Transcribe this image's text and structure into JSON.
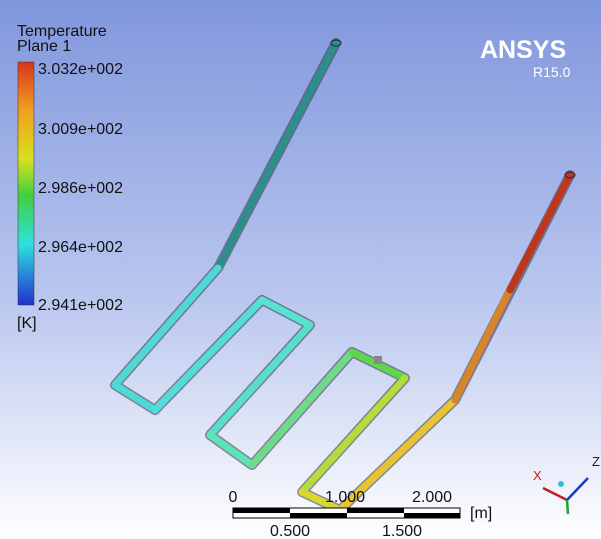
{
  "legend": {
    "title": "Temperature",
    "subtitle": "Plane 1",
    "labels": [
      "3.032e+002",
      "3.009e+002",
      "2.986e+002",
      "2.964e+002",
      "2.941e+002"
    ],
    "unit": "[K]"
  },
  "logo": {
    "name": "ANSYS",
    "version": "R15.0"
  },
  "scale_bar": {
    "top_labels": [
      "0",
      "1.000",
      "2.000"
    ],
    "bottom_labels": [
      "0.500",
      "1.500"
    ],
    "unit": "[m]"
  },
  "triad": {
    "x": "X",
    "z": "Z"
  }
}
